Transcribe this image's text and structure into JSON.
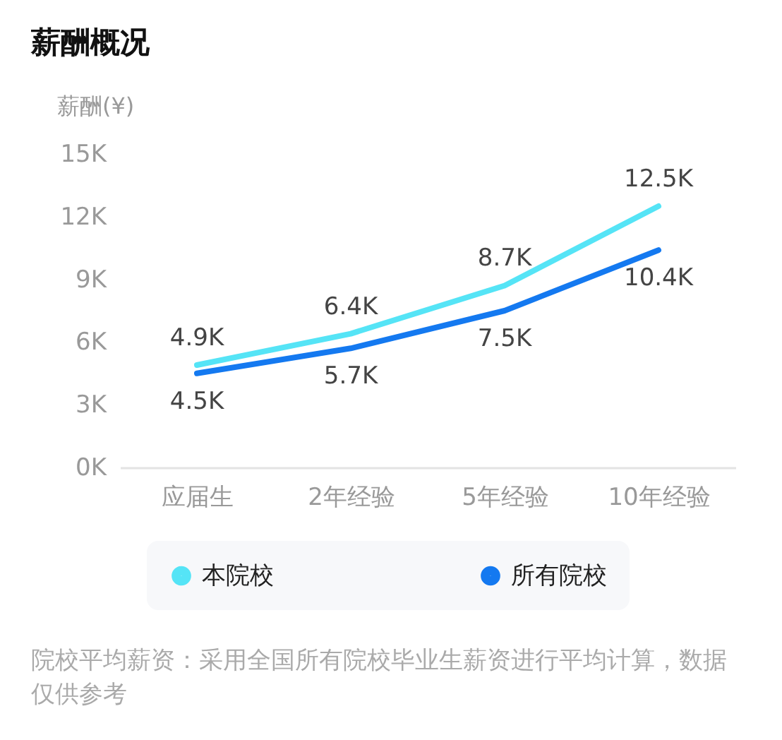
{
  "chart_data": {
    "type": "line",
    "title": "薪酬概况",
    "ylabel": "薪酬(¥)",
    "categories": [
      "应届生",
      "2年经验",
      "5年经验",
      "10年经验"
    ],
    "series": [
      {
        "name": "本院校",
        "color": "#55e4f6",
        "values": [
          4900,
          6400,
          8700,
          12500
        ],
        "value_labels": [
          "4.9K",
          "6.4K",
          "8.7K",
          "12.5K"
        ]
      },
      {
        "name": "所有院校",
        "color": "#1479f0",
        "values": [
          4500,
          5700,
          7500,
          10400
        ],
        "value_labels": [
          "4.5K",
          "5.7K",
          "7.5K",
          "10.4K"
        ]
      }
    ],
    "ylim": [
      0,
      15000
    ],
    "yticks": [
      {
        "value": 0,
        "label": "0K"
      },
      {
        "value": 3000,
        "label": "3K"
      },
      {
        "value": 6000,
        "label": "6K"
      },
      {
        "value": 9000,
        "label": "9K"
      },
      {
        "value": 12000,
        "label": "12K"
      },
      {
        "value": 15000,
        "label": "15K"
      }
    ],
    "legend": "bottom",
    "annotations": [
      "院校平均薪资：采用全国所有院校毕业生薪资进行平均计算，数据仅供参考"
    ]
  }
}
